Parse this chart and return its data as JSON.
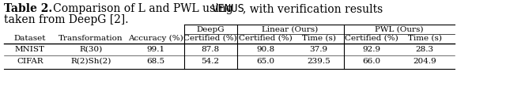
{
  "title_bold": "Table 2.",
  "title_normal": "   Comparison of L and PWL using ",
  "title_mono": "VENUS",
  "title_end": ", with verification results",
  "subtitle": "taken from DeepG [2].",
  "col_headers_left": [
    "Dataset",
    "Transformation",
    "Accuracy (%)"
  ],
  "group_headers": [
    "DeepG",
    "Linear (Ours)",
    "PWL (Ours)"
  ],
  "sub_headers": [
    "Certified (%)",
    "Certified (%)",
    "Time (s)",
    "Certified (%)",
    "Time (s)"
  ],
  "rows": [
    [
      "MNIST",
      "R(30)",
      "99.1",
      "87.8",
      "90.8",
      "37.9",
      "92.9",
      "28.3"
    ],
    [
      "CIFAR",
      "R(2)Sh(2)",
      "68.5",
      "54.2",
      "65.0",
      "239.5",
      "66.0",
      "204.9"
    ]
  ],
  "background": "#ffffff",
  "text_color": "#000000",
  "title_fs": 10,
  "header_fs": 7.5,
  "data_fs": 7.5
}
